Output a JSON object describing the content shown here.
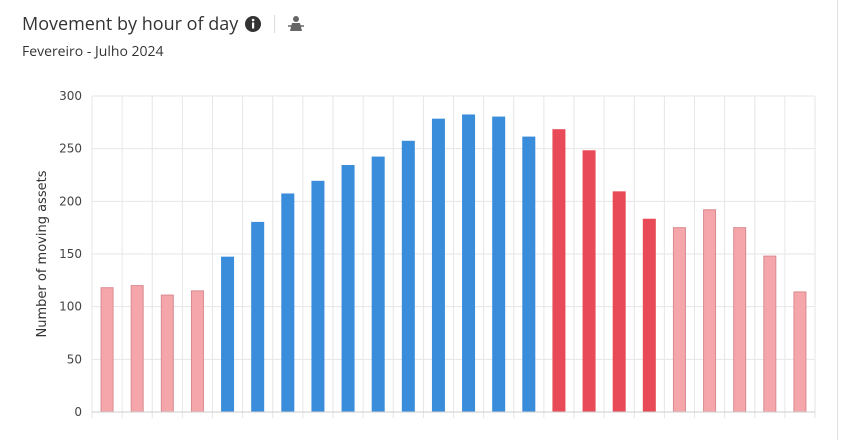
{
  "header": {
    "title": "Movement by hour of day",
    "subtitle": "Fevereiro - Julho 2024"
  },
  "chart_data": {
    "type": "bar",
    "y_label": "Number of moving assets",
    "values": [
      118,
      120,
      111,
      115,
      147,
      180,
      207,
      219,
      234,
      242,
      257,
      278,
      282,
      280,
      261,
      268,
      248,
      209,
      183,
      175,
      192,
      175,
      148,
      114
    ],
    "colors": [
      "#f4a6aa",
      "#f4a6aa",
      "#f4a6aa",
      "#f4a6aa",
      "#3a8ddb",
      "#3a8ddb",
      "#3a8ddb",
      "#3a8ddb",
      "#3a8ddb",
      "#3a8ddb",
      "#3a8ddb",
      "#3a8ddb",
      "#3a8ddb",
      "#3a8ddb",
      "#3a8ddb",
      "#e84a57",
      "#e84a57",
      "#e84a57",
      "#e84a57",
      "#f4a6aa",
      "#f4a6aa",
      "#f4a6aa",
      "#f4a6aa",
      "#f4a6aa"
    ],
    "ylim": [
      0,
      300
    ],
    "yticks": [
      0,
      50,
      100,
      150,
      200,
      250,
      300
    ],
    "grid": true
  }
}
